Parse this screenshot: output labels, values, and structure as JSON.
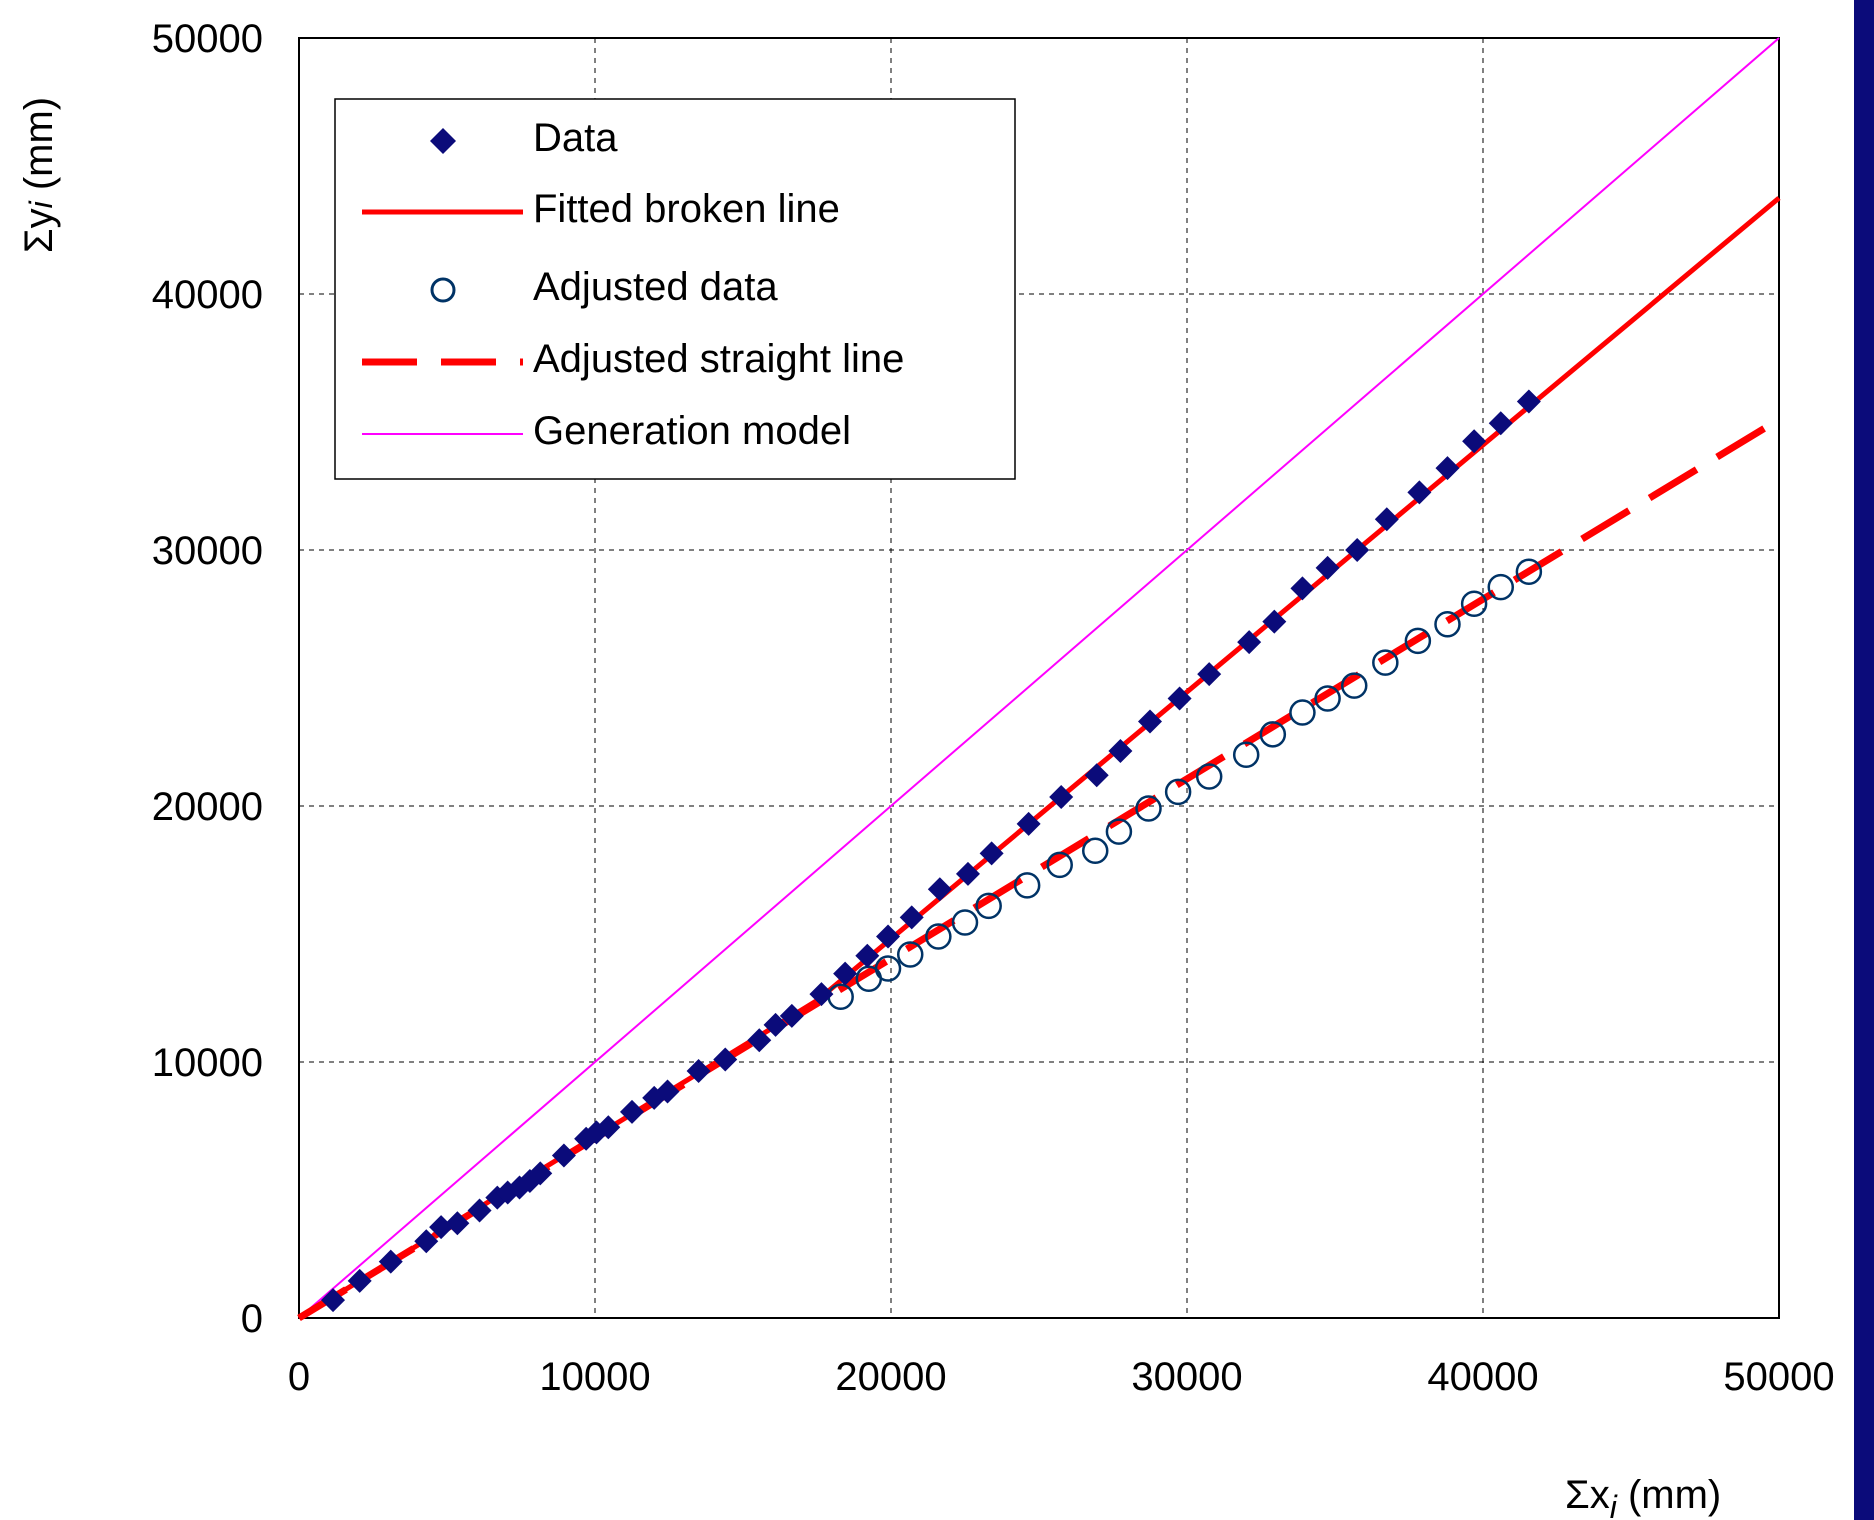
{
  "chart_data": {
    "type": "scatter",
    "xlim": [
      0,
      50000
    ],
    "ylim": [
      0,
      50000
    ],
    "x_ticks": [
      0,
      10000,
      20000,
      30000,
      40000,
      50000
    ],
    "y_ticks": [
      0,
      10000,
      20000,
      30000,
      40000,
      50000
    ],
    "x_tick_labels": [
      "0",
      "10000",
      "20000",
      "30000",
      "40000",
      "50000"
    ],
    "y_tick_labels": [
      "0",
      "10000",
      "20000",
      "30000",
      "40000",
      "50000"
    ],
    "xlabel": {
      "base": "Σx",
      "sub": "i",
      "unit": " (mm)"
    },
    "ylabel": {
      "base": "Σy",
      "sub": "i",
      "unit": " (mm)"
    },
    "grid": true,
    "legend_position": "top-left",
    "colors": {
      "data": "#0b0b7a",
      "fitted": "#ff0000",
      "adjusted": "#003366",
      "adjusted_line": "#ff0000",
      "generation": "#ff00ff",
      "right_bar": "#0b0b7a"
    },
    "series": [
      {
        "name": "Data",
        "kind": "points",
        "marker": "diamond",
        "x": [
          1150,
          2050,
          3100,
          4300,
          4800,
          5350,
          6100,
          6700,
          7050,
          7450,
          7800,
          8150,
          8950,
          9700,
          10050,
          10450,
          11250,
          12000,
          12450,
          13500,
          14400,
          15550,
          16100,
          16650,
          17650,
          18450,
          19200,
          19900,
          20700,
          21650,
          22600,
          23400,
          24650,
          25750,
          26950,
          27750,
          28750,
          29750,
          30750,
          32100,
          32950,
          33900,
          34750,
          35750,
          36750,
          37850,
          38800,
          39700,
          40600,
          41550
        ],
        "y": [
          700,
          1450,
          2200,
          3000,
          3550,
          3700,
          4200,
          4700,
          4900,
          5100,
          5350,
          5650,
          6350,
          7000,
          7250,
          7450,
          8050,
          8600,
          8850,
          9650,
          10100,
          10850,
          11450,
          11800,
          12650,
          13450,
          14150,
          14900,
          15650,
          16750,
          17350,
          18150,
          19300,
          20350,
          21200,
          22150,
          23300,
          24200,
          25150,
          26400,
          27200,
          28500,
          29300,
          30000,
          31200,
          32250,
          33200,
          34250,
          34950,
          35800
        ]
      },
      {
        "name": "Fitted broken line",
        "kind": "line",
        "x": [
          0,
          17500,
          50000
        ],
        "y": [
          0,
          12400,
          43750
        ]
      },
      {
        "name": "Adjusted data",
        "kind": "points",
        "marker": "circle",
        "x": [
          18300,
          19250,
          19900,
          20650,
          21600,
          22500,
          23300,
          24600,
          25700,
          26900,
          27700,
          28700,
          29700,
          30750,
          32000,
          32900,
          33900,
          34750,
          35650,
          36700,
          37800,
          38800,
          39700,
          40600,
          41550
        ],
        "y": [
          12550,
          13250,
          13650,
          14200,
          14900,
          15450,
          16100,
          16900,
          17700,
          18250,
          19000,
          19900,
          20550,
          21150,
          22000,
          22800,
          23650,
          24200,
          24700,
          25600,
          26450,
          27100,
          27900,
          28550,
          29150
        ]
      },
      {
        "name": "Adjusted straight line",
        "kind": "dashed-line",
        "x": [
          0,
          50000
        ],
        "y": [
          0,
          35100
        ]
      },
      {
        "name": "Generation model",
        "kind": "thin-line",
        "x": [
          0,
          50000
        ],
        "y": [
          0,
          50000
        ]
      }
    ]
  }
}
